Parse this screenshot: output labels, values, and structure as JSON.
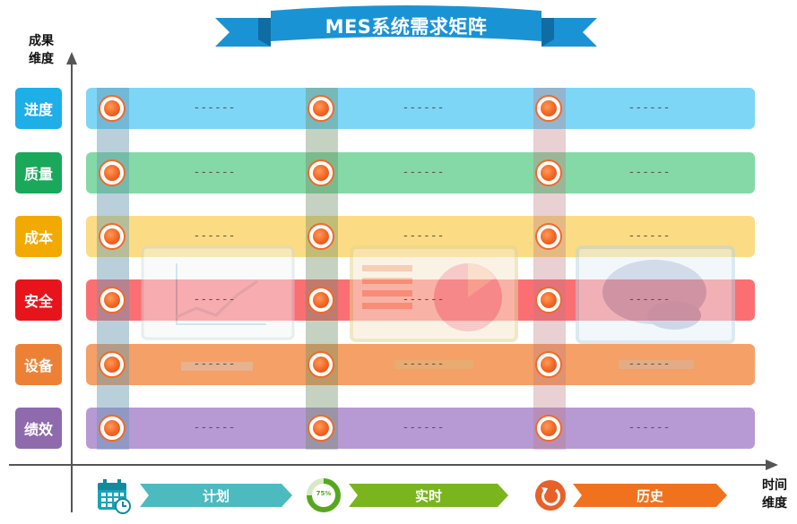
{
  "title": "MES系统需求矩阵",
  "axis": {
    "y_label_line1": "成果",
    "y_label_line2": "维度",
    "x_label_line1": "时间",
    "x_label_line2": "维度"
  },
  "rows": [
    {
      "label": "进度",
      "tag_color": "#1eaee8",
      "bar_color": "#7dd6f6"
    },
    {
      "label": "质量",
      "tag_color": "#1aa85a",
      "bar_color": "#84d9a7"
    },
    {
      "label": "成本",
      "tag_color": "#f2a900",
      "bar_color": "#fbdc84"
    },
    {
      "label": "安全",
      "tag_color": "#e8141b",
      "bar_color": "#fb6f73"
    },
    {
      "label": "设备",
      "tag_color": "#ec8136",
      "bar_color": "#f4a066"
    },
    {
      "label": "绩效",
      "tag_color": "#8f6aad",
      "bar_color": "#b79ad3"
    }
  ],
  "cell_placeholder": "------",
  "columns": [
    {
      "label": "计划",
      "color": "#4bbbc0",
      "icon": "calendar-icon",
      "strip_color": "#8fbfd1"
    },
    {
      "label": "实时",
      "color": "#7ab51d",
      "icon": "progress-75-icon",
      "progress_text": "75%",
      "strip_color": "#9fb49c"
    },
    {
      "label": "历史",
      "color": "#f0721c",
      "icon": "refresh-history-icon",
      "strip_color": "#d9a0a6"
    }
  ],
  "colors": {
    "ribbon_main": "#1a93d4",
    "ribbon_dark": "#1170a6",
    "axis": "#555555",
    "dot": "#f26522"
  }
}
